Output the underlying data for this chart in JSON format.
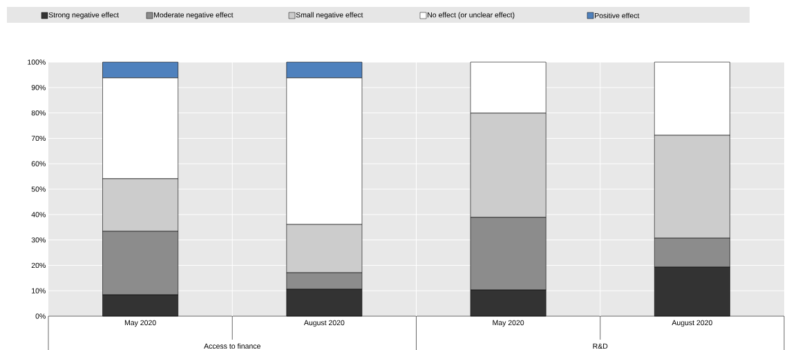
{
  "chart_data": {
    "type": "bar",
    "stacked": true,
    "categories": [
      "May 2020",
      "August 2020",
      "May 2020",
      "August 2020"
    ],
    "series": [
      {
        "name": "Strong negative effect",
        "color": "#333333",
        "values": [
          8.4,
          10.6,
          10.3,
          19.3
        ]
      },
      {
        "name": "Moderate negative effect",
        "color": "#8c8c8c",
        "values": [
          25.0,
          6.5,
          28.6,
          11.4
        ]
      },
      {
        "name": "Small negative effect",
        "color": "#cccccc",
        "values": [
          20.7,
          19.0,
          41.0,
          40.5
        ]
      },
      {
        "name": "No effect (or unclear effect)",
        "color": "#ffffff",
        "values": [
          39.7,
          57.7,
          20.1,
          28.8
        ]
      },
      {
        "name": "Positive effect",
        "color": "#4f81bd",
        "values": [
          6.2,
          6.2,
          null,
          null
        ]
      }
    ],
    "annotations": [
      "Access to finance",
      "R&D"
    ],
    "ylim": [
      0,
      100
    ],
    "yticks": [
      {
        "value": 0,
        "label": "0%"
      },
      {
        "value": 10,
        "label": "10%"
      },
      {
        "value": 20,
        "label": "20%"
      },
      {
        "value": 30,
        "label": "30%"
      },
      {
        "value": 40,
        "label": "40%"
      },
      {
        "value": 50,
        "label": "50%"
      },
      {
        "value": 60,
        "label": "60%"
      },
      {
        "value": 70,
        "label": "70%"
      },
      {
        "value": 80,
        "label": "80%"
      },
      {
        "value": 90,
        "label": "90%"
      },
      {
        "value": 100,
        "label": "100%"
      }
    ],
    "grid": "y",
    "legend": "top"
  }
}
